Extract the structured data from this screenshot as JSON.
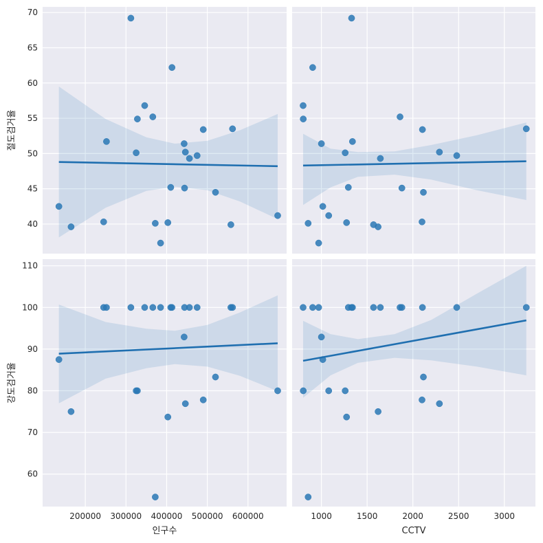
{
  "chart_data": [
    {
      "type": "scatter",
      "panel": "top-left",
      "xlabel": "",
      "ylabel": "절도검거율",
      "xlim": [
        95000,
        695000
      ],
      "ylim": [
        35.8,
        70.8
      ],
      "xticks": [
        200000,
        300000,
        400000,
        500000,
        600000
      ],
      "xtick_labels": [
        "",
        "",
        "",
        "",
        ""
      ],
      "yticks": [
        40,
        45,
        50,
        55,
        60,
        65,
        70
      ],
      "ytick_labels": [
        "40",
        "45",
        "50",
        "55",
        "60",
        "65",
        "70"
      ],
      "grid": true,
      "points": [
        [
          135000,
          42.5
        ],
        [
          165000,
          39.6
        ],
        [
          245000,
          40.3
        ],
        [
          252000,
          51.7
        ],
        [
          312000,
          69.2
        ],
        [
          325000,
          50.1
        ],
        [
          328000,
          54.9
        ],
        [
          346000,
          56.8
        ],
        [
          366000,
          55.2
        ],
        [
          372000,
          40.1
        ],
        [
          385000,
          37.3
        ],
        [
          403000,
          40.2
        ],
        [
          410000,
          45.2
        ],
        [
          413000,
          62.2
        ],
        [
          443000,
          51.4
        ],
        [
          444000,
          45.1
        ],
        [
          446000,
          50.2
        ],
        [
          456000,
          49.3
        ],
        [
          475000,
          49.7
        ],
        [
          490000,
          53.4
        ],
        [
          520000,
          44.5
        ],
        [
          558000,
          39.9
        ],
        [
          562000,
          53.5
        ],
        [
          673000,
          41.2
        ]
      ],
      "regression": {
        "x": [
          135000,
          673000
        ],
        "y": [
          48.8,
          48.2
        ]
      },
      "ci_band": {
        "x": [
          135000,
          250000,
          350000,
          420000,
          500000,
          580000,
          673000
        ],
        "upper": [
          59.5,
          54.9,
          52.3,
          51.4,
          51.8,
          53.3,
          55.6
        ],
        "lower": [
          38.1,
          42.3,
          44.7,
          45.3,
          44.8,
          43.2,
          40.7
        ]
      },
      "color": "#2a78b5"
    },
    {
      "type": "scatter",
      "panel": "top-right",
      "xlabel": "",
      "ylabel": "",
      "xlim": [
        680,
        3340
      ],
      "ylim": [
        35.8,
        70.8
      ],
      "xticks": [
        1000,
        1500,
        2000,
        2500,
        3000
      ],
      "xtick_labels": [
        "",
        "",
        "",
        "",
        ""
      ],
      "yticks": [
        40,
        45,
        50,
        55,
        60,
        65,
        70
      ],
      "ytick_labels": [
        "",
        "",
        "",
        "",
        "",
        "",
        ""
      ],
      "grid": true,
      "points": [
        [
          800,
          56.8
        ],
        [
          802,
          54.9
        ],
        [
          855,
          40.1
        ],
        [
          905,
          62.2
        ],
        [
          970,
          37.3
        ],
        [
          1000,
          51.4
        ],
        [
          1015,
          42.5
        ],
        [
          1080,
          41.2
        ],
        [
          1260,
          50.1
        ],
        [
          1275,
          40.2
        ],
        [
          1295,
          45.2
        ],
        [
          1330,
          69.2
        ],
        [
          1340,
          51.7
        ],
        [
          1570,
          39.9
        ],
        [
          1620,
          39.6
        ],
        [
          1645,
          49.3
        ],
        [
          1860,
          55.2
        ],
        [
          1880,
          45.1
        ],
        [
          2100,
          40.3
        ],
        [
          2105,
          53.4
        ],
        [
          2115,
          44.5
        ],
        [
          2290,
          50.2
        ],
        [
          2480,
          49.7
        ],
        [
          3240,
          53.5
        ]
      ],
      "regression": {
        "x": [
          800,
          3240
        ],
        "y": [
          48.3,
          48.9
        ]
      },
      "ci_band": {
        "x": [
          800,
          1100,
          1400,
          1800,
          2200,
          2700,
          3240
        ],
        "upper": [
          52.8,
          50.7,
          50.2,
          50.3,
          51.2,
          52.6,
          54.4
        ],
        "lower": [
          42.7,
          45.2,
          46.7,
          47.0,
          46.3,
          44.8,
          43.4
        ]
      },
      "color": "#2a78b5"
    },
    {
      "type": "scatter",
      "panel": "bottom-left",
      "xlabel": "인구수",
      "ylabel": "강도검거율",
      "xlim": [
        95000,
        695000
      ],
      "ylim": [
        52.2,
        111.6
      ],
      "xticks": [
        200000,
        300000,
        400000,
        500000,
        600000
      ],
      "xtick_labels": [
        "200000",
        "300000",
        "400000",
        "500000",
        "600000"
      ],
      "yticks": [
        60,
        70,
        80,
        90,
        100,
        110
      ],
      "ytick_labels": [
        "60",
        "70",
        "80",
        "90",
        "100",
        "110"
      ],
      "grid": true,
      "points": [
        [
          135000,
          87.5
        ],
        [
          165000,
          75.0
        ],
        [
          245000,
          100
        ],
        [
          252000,
          100
        ],
        [
          312000,
          100
        ],
        [
          325000,
          80.0
        ],
        [
          328000,
          80.0
        ],
        [
          346000,
          100
        ],
        [
          366000,
          100
        ],
        [
          372000,
          54.5
        ],
        [
          385000,
          100
        ],
        [
          403000,
          73.7
        ],
        [
          410000,
          100
        ],
        [
          413000,
          100
        ],
        [
          443000,
          92.9
        ],
        [
          444000,
          100
        ],
        [
          446000,
          76.9
        ],
        [
          456000,
          100
        ],
        [
          475000,
          100
        ],
        [
          490000,
          77.8
        ],
        [
          520000,
          83.3
        ],
        [
          558000,
          100
        ],
        [
          562000,
          100
        ],
        [
          673000,
          80.0
        ]
      ],
      "regression": {
        "x": [
          135000,
          673000
        ],
        "y": [
          88.9,
          91.4
        ]
      },
      "ci_band": {
        "x": [
          135000,
          250000,
          350000,
          420000,
          500000,
          580000,
          673000
        ],
        "upper": [
          100.7,
          96.5,
          94.9,
          94.4,
          95.8,
          98.8,
          102.9
        ],
        "lower": [
          77.0,
          82.9,
          85.4,
          86.4,
          85.8,
          83.6,
          79.9
        ]
      },
      "color": "#2a78b5"
    },
    {
      "type": "scatter",
      "panel": "bottom-right",
      "xlabel": "CCTV",
      "ylabel": "",
      "xlim": [
        680,
        3340
      ],
      "ylim": [
        52.2,
        111.6
      ],
      "xticks": [
        1000,
        1500,
        2000,
        2500,
        3000
      ],
      "xtick_labels": [
        "1000",
        "1500",
        "2000",
        "2500",
        "3000"
      ],
      "yticks": [
        60,
        70,
        80,
        90,
        100,
        110
      ],
      "ytick_labels": [
        "",
        "",
        "",
        "",
        "",
        ""
      ],
      "grid": true,
      "points": [
        [
          800,
          100
        ],
        [
          802,
          80.0
        ],
        [
          855,
          54.5
        ],
        [
          905,
          100
        ],
        [
          970,
          100
        ],
        [
          1000,
          92.9
        ],
        [
          1015,
          87.5
        ],
        [
          1080,
          80.0
        ],
        [
          1260,
          80.0
        ],
        [
          1275,
          73.7
        ],
        [
          1295,
          100
        ],
        [
          1330,
          100
        ],
        [
          1340,
          100
        ],
        [
          1570,
          100
        ],
        [
          1620,
          75.0
        ],
        [
          1645,
          100
        ],
        [
          1860,
          100
        ],
        [
          1880,
          100
        ],
        [
          2100,
          77.8
        ],
        [
          2105,
          100
        ],
        [
          2115,
          83.3
        ],
        [
          2290,
          76.9
        ],
        [
          2480,
          100
        ],
        [
          3240,
          100
        ]
      ],
      "regression": {
        "x": [
          800,
          3240
        ],
        "y": [
          87.2,
          96.9
        ]
      },
      "ci_band": {
        "x": [
          800,
          1100,
          1400,
          1800,
          2200,
          2700,
          3240
        ],
        "upper": [
          96.8,
          93.6,
          92.4,
          93.6,
          97.0,
          103.3,
          110.0
        ],
        "lower": [
          78.3,
          83.7,
          86.7,
          87.9,
          87.3,
          85.8,
          83.7
        ]
      },
      "color": "#2a78b5"
    }
  ]
}
